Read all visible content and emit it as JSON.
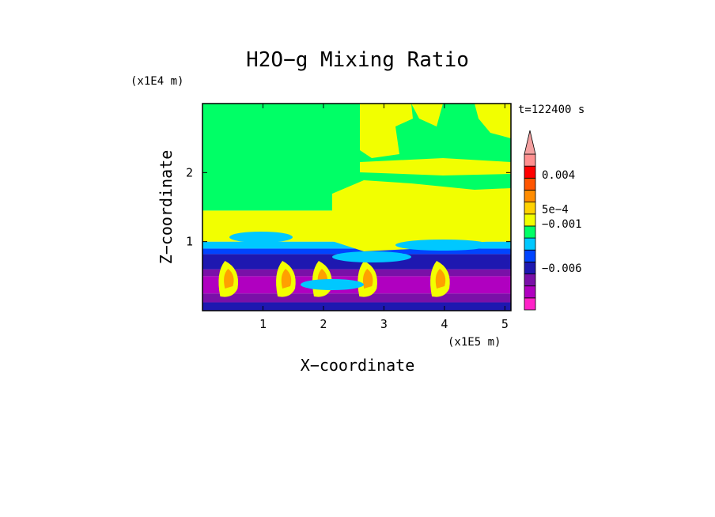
{
  "chart_data": {
    "type": "heatmap",
    "title": "H2O−g Mixing Ratio",
    "xlabel": "X−coordinate",
    "ylabel": "Z−coordinate",
    "x_scale_label": "(x1E5 m)",
    "y_scale_label": "(x1E4 m)",
    "time_label": "t=122400 s",
    "xlim": [
      0.0,
      5.1
    ],
    "ylim": [
      0.0,
      3.0
    ],
    "x_ticks": [
      1,
      2,
      3,
      4,
      5
    ],
    "y_ticks": [
      1,
      2
    ],
    "colorbar": {
      "colors": [
        "#ff22c8",
        "#b000c0",
        "#7a10a8",
        "#1e18b0",
        "#0044ff",
        "#00c8ff",
        "#00ff66",
        "#f2ff00",
        "#ffd200",
        "#ff8c00",
        "#ff5500",
        "#ff0000",
        "#ff9090",
        "#f4a0a0"
      ],
      "labels": [
        {
          "text": "−0.006",
          "level": 3.5
        },
        {
          "text": "−0.001",
          "level": 7.2
        },
        {
          "text": "5e−4",
          "level": 8.4
        },
        {
          "text": "0.004",
          "level": 11.3
        }
      ]
    },
    "layers": [
      {
        "z": [
          0.0,
          0.12
        ],
        "color": "#1e18b0"
      },
      {
        "z": [
          0.12,
          0.25
        ],
        "color": "#7a10a8"
      },
      {
        "z": [
          0.25,
          0.5
        ],
        "color": "#b000c0"
      },
      {
        "z": [
          0.5,
          0.6
        ],
        "color": "#7a10a8"
      },
      {
        "z": [
          0.6,
          0.82
        ],
        "color": "#1e18b0"
      },
      {
        "z": [
          0.82,
          0.9
        ],
        "color": "#0044ff"
      },
      {
        "z": [
          0.9,
          1.0
        ],
        "color": "#00c8ff"
      },
      {
        "z": [
          1.0,
          1.45
        ],
        "color": "#f2ff00"
      },
      {
        "z": [
          1.45,
          3.0
        ],
        "color": "#00ff66"
      }
    ]
  }
}
